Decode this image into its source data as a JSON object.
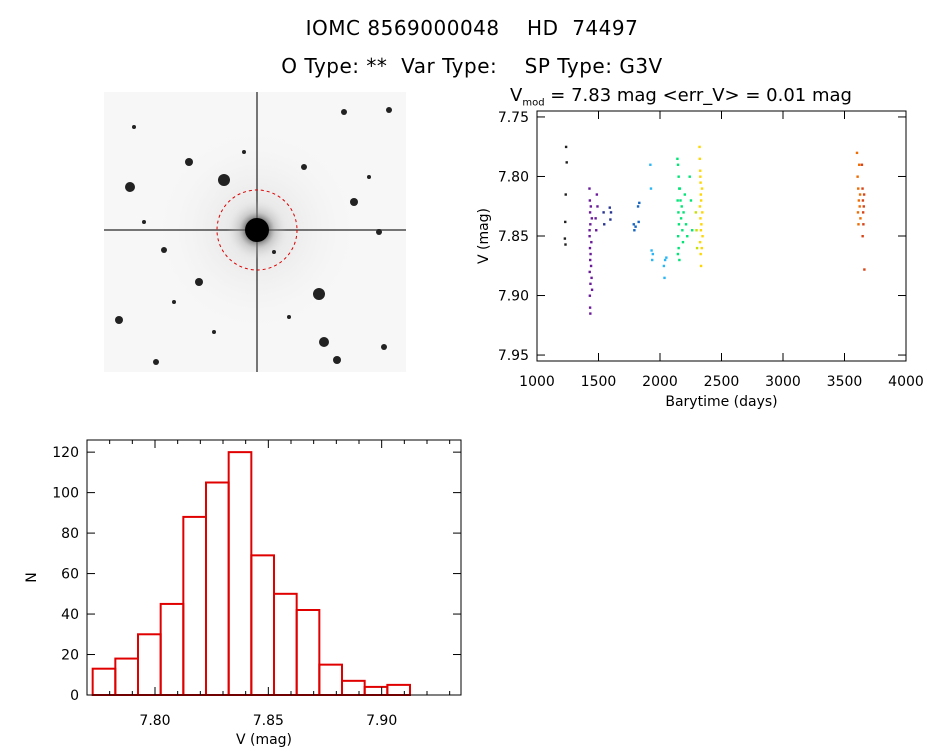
{
  "header": {
    "line1": "IOMC 8569000048    HD  74497",
    "line2": "O Type: **  Var Type:    SP Type: G3V",
    "vmag_symbol": "V",
    "vmag_subscript": "mod",
    "vmag_rest": " = 7.83 mag <err_V> = 0.01 mag"
  },
  "colors": {
    "histogram": "#e00000",
    "axes": "#000000",
    "circle": "#dd0000"
  },
  "chart_data": [
    {
      "type": "scatter",
      "xlabel": "Barytime (days)",
      "ylabel": "V (mag)",
      "xlim": [
        1000,
        4000
      ],
      "ylim": [
        7.955,
        7.745
      ],
      "y_inverted": true,
      "xticks": [
        1000,
        1500,
        2000,
        2500,
        3000,
        3500,
        4000
      ],
      "yticks": [
        7.75,
        7.8,
        7.85,
        7.9,
        7.95
      ],
      "ytick_labels": [
        "7.75",
        "7.80",
        "7.85",
        "7.90",
        "7.95"
      ],
      "series": [
        {
          "color": "#202020",
          "points": [
            [
              1235,
              7.775
            ],
            [
              1240,
              7.788
            ],
            [
              1232,
              7.815
            ],
            [
              1228,
              7.838
            ],
            [
              1225,
              7.852
            ],
            [
              1230,
              7.857
            ]
          ]
        },
        {
          "color": "#6a1b9a",
          "points": [
            [
              1425,
              7.81
            ],
            [
              1428,
              7.82
            ],
            [
              1430,
              7.83
            ],
            [
              1432,
              7.84
            ],
            [
              1426,
              7.85
            ],
            [
              1429,
              7.86
            ],
            [
              1431,
              7.87
            ],
            [
              1427,
              7.88
            ],
            [
              1433,
              7.89
            ],
            [
              1428,
              7.9
            ],
            [
              1430,
              7.91
            ],
            [
              1432,
              7.915
            ],
            [
              1426,
              7.845
            ],
            [
              1434,
              7.865
            ],
            [
              1436,
              7.825
            ],
            [
              1438,
              7.875
            ],
            [
              1440,
              7.855
            ],
            [
              1442,
              7.885
            ],
            [
              1444,
              7.835
            ],
            [
              1446,
              7.895
            ],
            [
              1475,
              7.835
            ],
            [
              1480,
              7.845
            ],
            [
              1485,
              7.815
            ],
            [
              1490,
              7.825
            ]
          ]
        },
        {
          "color": "#283593",
          "points": [
            [
              1540,
              7.83
            ],
            [
              1545,
              7.84
            ],
            [
              1590,
              7.826
            ],
            [
              1595,
              7.836
            ],
            [
              1600,
              7.83
            ]
          ]
        },
        {
          "color": "#1565c0",
          "points": [
            [
              1785,
              7.84
            ],
            [
              1790,
              7.845
            ],
            [
              1800,
              7.842
            ],
            [
              1820,
              7.825
            ],
            [
              1825,
              7.838
            ],
            [
              1830,
              7.822
            ]
          ]
        },
        {
          "color": "#29b6f6",
          "points": [
            [
              1920,
              7.79
            ],
            [
              1925,
              7.81
            ],
            [
              1930,
              7.862
            ],
            [
              1935,
              7.87
            ],
            [
              1940,
              7.865
            ],
            [
              2030,
              7.875
            ],
            [
              2035,
              7.885
            ],
            [
              2040,
              7.87
            ],
            [
              2050,
              7.868
            ]
          ]
        },
        {
          "color": "#00e676",
          "points": [
            [
              2140,
              7.785
            ],
            [
              2145,
              7.79
            ],
            [
              2150,
              7.8
            ],
            [
              2155,
              7.81
            ],
            [
              2142,
              7.82
            ],
            [
              2148,
              7.83
            ],
            [
              2152,
              7.84
            ],
            [
              2146,
              7.85
            ],
            [
              2150,
              7.86
            ],
            [
              2144,
              7.865
            ],
            [
              2156,
              7.87
            ],
            [
              2160,
              7.81
            ],
            [
              2165,
              7.82
            ],
            [
              2170,
              7.835
            ],
            [
              2175,
              7.825
            ],
            [
              2180,
              7.845
            ],
            [
              2185,
              7.855
            ],
            [
              2190,
              7.83
            ],
            [
              2200,
              7.815
            ],
            [
              2210,
              7.84
            ],
            [
              2220,
              7.85
            ],
            [
              2240,
              7.8
            ],
            [
              2250,
              7.82
            ],
            [
              2260,
              7.845
            ]
          ]
        },
        {
          "color": "#c6e000",
          "points": [
            [
              2290,
              7.83
            ],
            [
              2295,
              7.845
            ],
            [
              2300,
              7.86
            ]
          ]
        },
        {
          "color": "#ffd600",
          "points": [
            [
              2320,
              7.775
            ],
            [
              2322,
              7.785
            ],
            [
              2325,
              7.795
            ],
            [
              2328,
              7.805
            ],
            [
              2330,
              7.815
            ],
            [
              2323,
              7.825
            ],
            [
              2327,
              7.835
            ],
            [
              2331,
              7.845
            ],
            [
              2324,
              7.855
            ],
            [
              2329,
              7.865
            ],
            [
              2332,
              7.875
            ],
            [
              2326,
              7.8
            ],
            [
              2333,
              7.82
            ],
            [
              2335,
              7.84
            ],
            [
              2338,
              7.86
            ],
            [
              2340,
              7.81
            ],
            [
              2342,
              7.83
            ],
            [
              2344,
              7.85
            ]
          ]
        },
        {
          "color": "#ef6c00",
          "points": [
            [
              3600,
              7.78
            ],
            [
              3605,
              7.8
            ],
            [
              3610,
              7.81
            ],
            [
              3615,
              7.82
            ],
            [
              3608,
              7.83
            ],
            [
              3612,
              7.84
            ],
            [
              3618,
              7.79
            ],
            [
              3622,
              7.825
            ],
            [
              3625,
              7.815
            ],
            [
              3628,
              7.835
            ]
          ]
        },
        {
          "color": "#d84315",
          "points": [
            [
              3640,
              7.79
            ],
            [
              3645,
              7.81
            ],
            [
              3648,
              7.82
            ],
            [
              3650,
              7.83
            ],
            [
              3652,
              7.84
            ],
            [
              3646,
              7.85
            ],
            [
              3655,
              7.825
            ],
            [
              3658,
              7.815
            ],
            [
              3660,
              7.878
            ]
          ]
        }
      ]
    },
    {
      "type": "bar",
      "xlabel": "V (mag)",
      "ylabel": "N",
      "xlim": [
        7.77,
        7.935
      ],
      "ylim": [
        0,
        126
      ],
      "xticks": [
        7.8,
        7.85,
        7.9
      ],
      "xtick_labels": [
        "7.80",
        "7.85",
        "7.90"
      ],
      "yticks": [
        0,
        20,
        40,
        60,
        80,
        100,
        120
      ],
      "bin_edges": [
        7.7725,
        7.7825,
        7.7925,
        7.8025,
        7.8125,
        7.8225,
        7.8325,
        7.8425,
        7.8525,
        7.8625,
        7.8725,
        7.8825,
        7.8925,
        7.9025,
        7.9125
      ],
      "values": [
        13,
        18,
        30,
        45,
        88,
        105,
        120,
        69,
        50,
        42,
        15,
        7,
        4,
        5
      ]
    }
  ]
}
